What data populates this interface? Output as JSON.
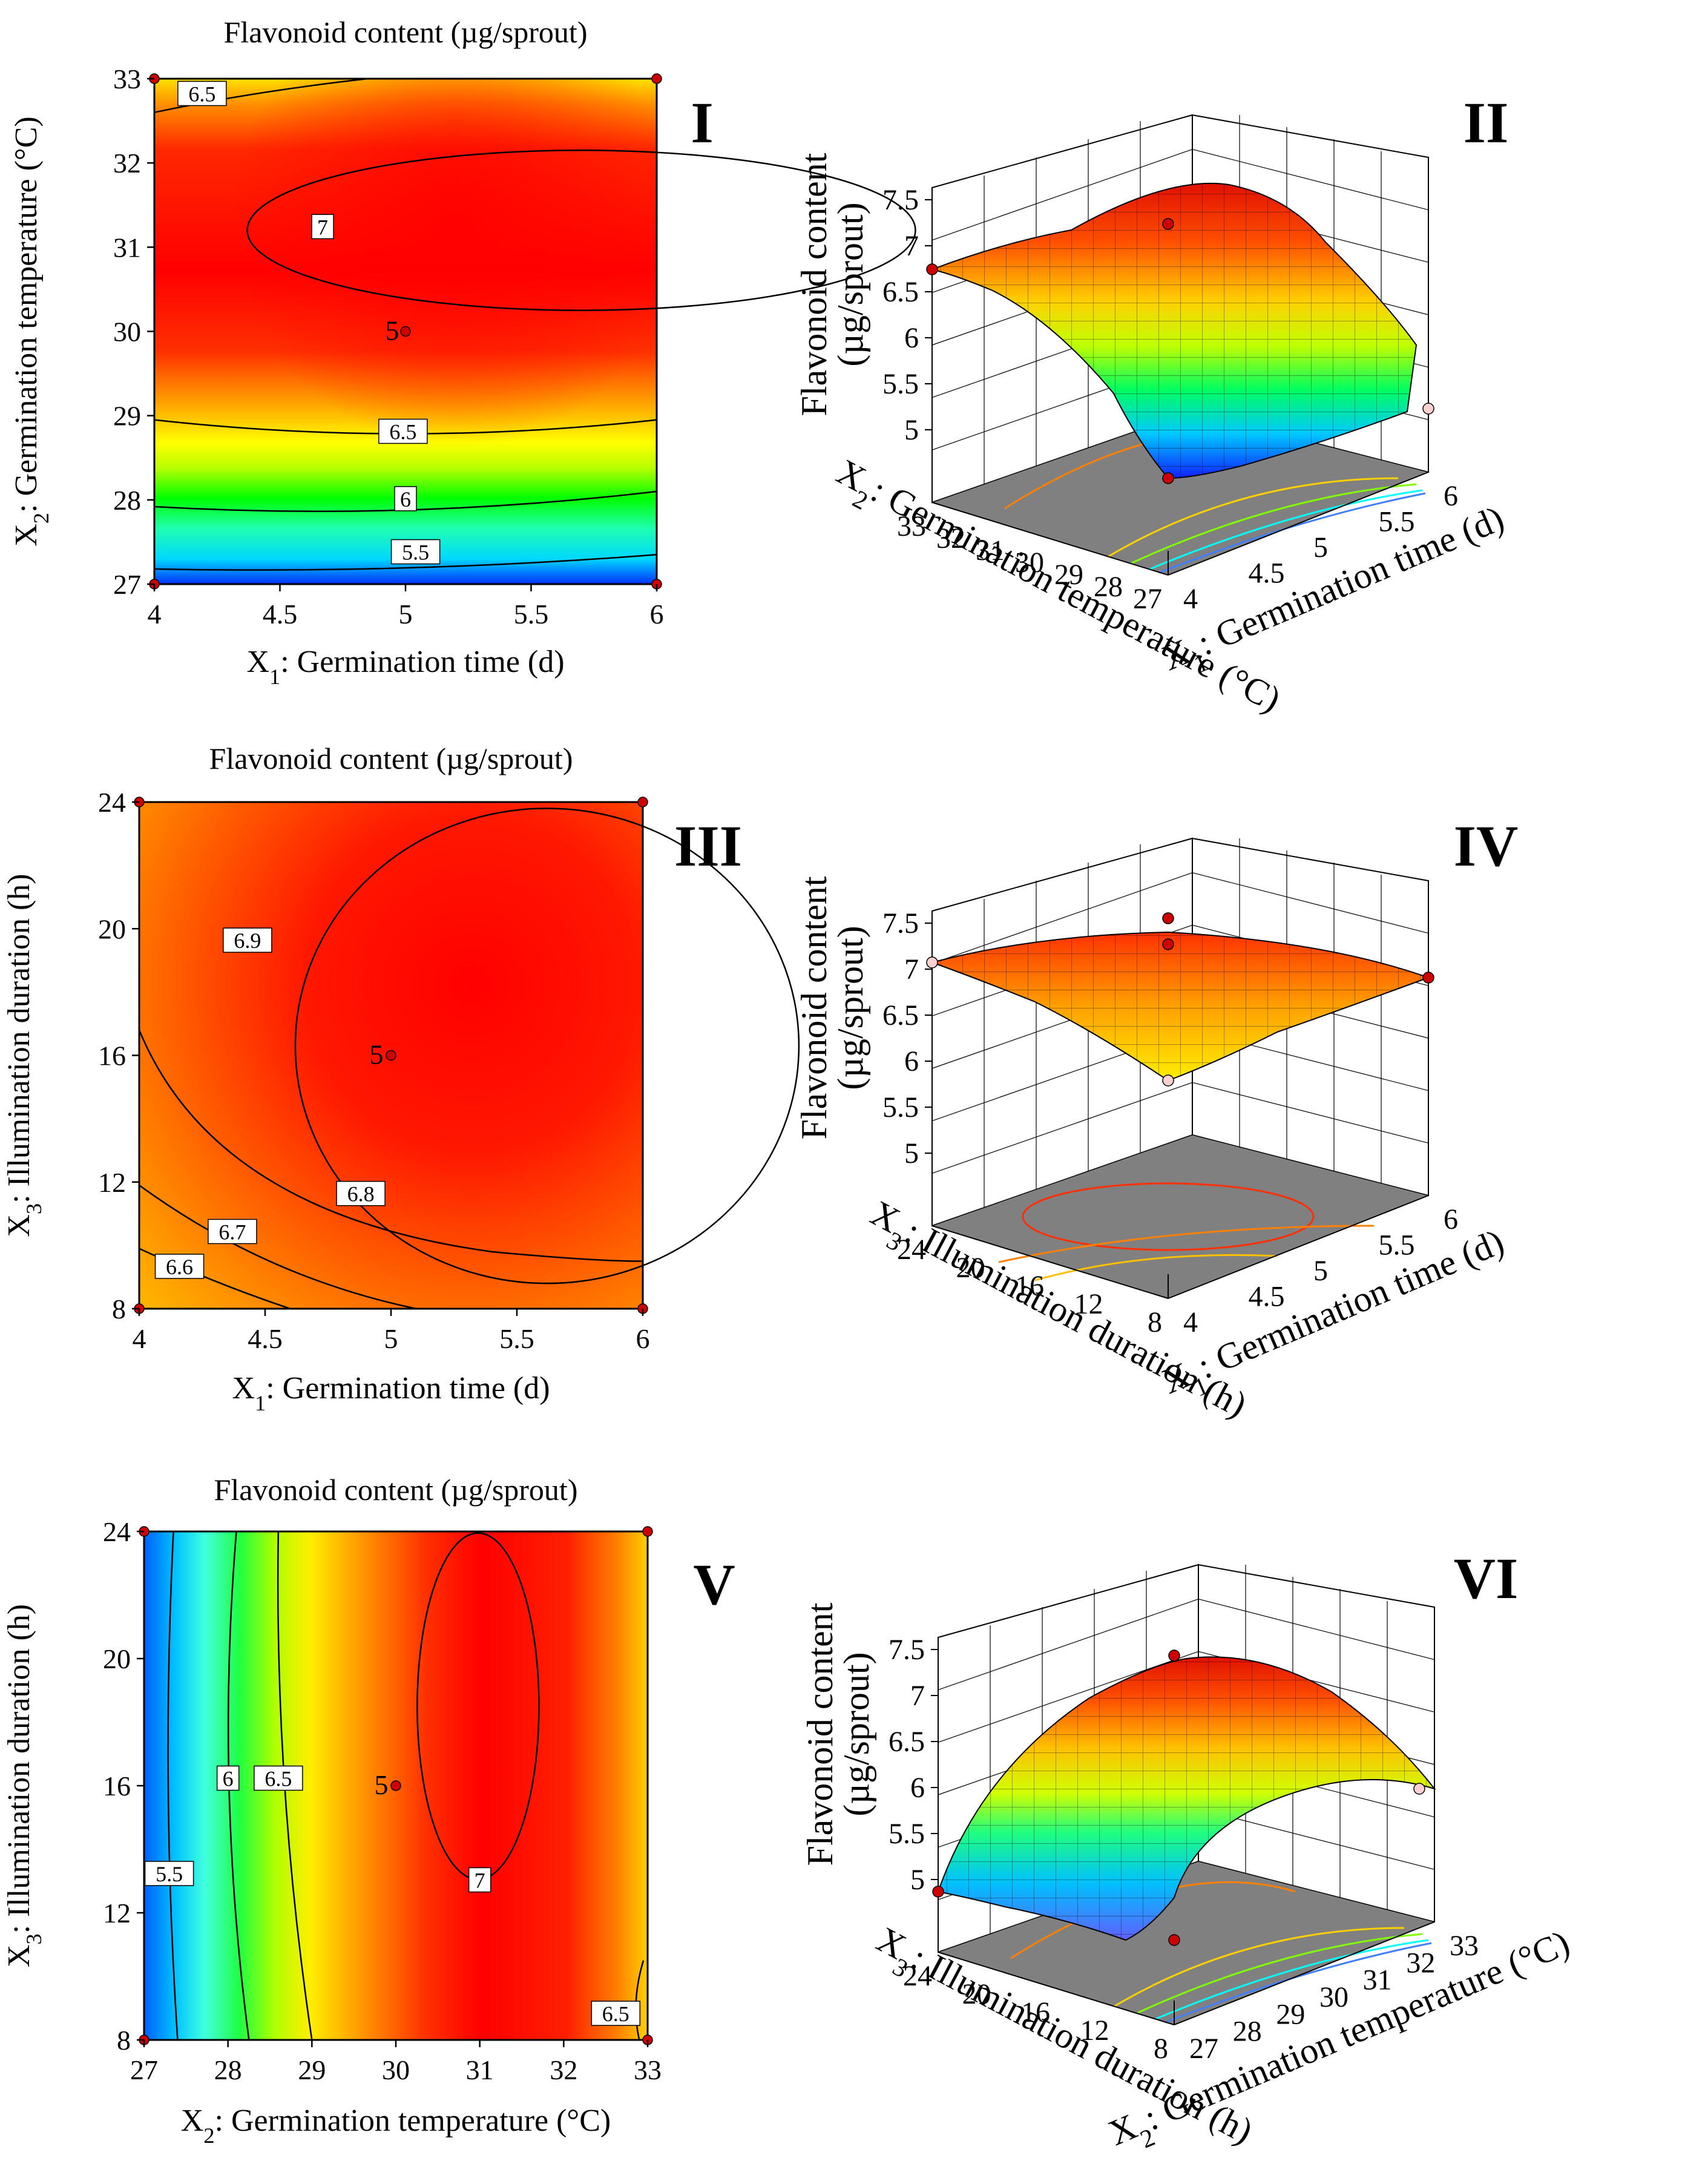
{
  "chart_data": [
    {
      "id": "I",
      "type": "contour",
      "title": "Flavonoid content (µg/sprout)",
      "xlabel": "X1: Germination time (d)",
      "ylabel": "X2: Germination temperature (°C)",
      "xlim": [
        4,
        6
      ],
      "ylim": [
        27,
        33
      ],
      "xticks": [
        "4",
        "4.5",
        "5",
        "5.5",
        "6"
      ],
      "yticks": [
        "27",
        "28",
        "29",
        "30",
        "31",
        "32",
        "33"
      ],
      "contour_levels": [
        "5.5",
        "6",
        "6.5",
        "7",
        "6.5"
      ],
      "center_point_label": "5"
    },
    {
      "id": "II",
      "type": "surface3d",
      "zlabel": "Flavonoid content (µg/sprout)",
      "xlabel": "X1: Germination time (d)",
      "ylabel": "X2: Germination temperature (°C)",
      "zticks": [
        "5",
        "5.5",
        "6",
        "6.5",
        "7",
        "7.5"
      ],
      "xticks": [
        "4",
        "4.5",
        "5",
        "5.5",
        "6"
      ],
      "yticks": [
        "27",
        "28",
        "29",
        "30",
        "31",
        "32",
        "33"
      ]
    },
    {
      "id": "III",
      "type": "contour",
      "title": "Flavonoid content (µg/sprout)",
      "xlabel": "X1: Germination time (d)",
      "ylabel": "X3: Illumination duration (h)",
      "xlim": [
        4,
        6
      ],
      "ylim": [
        8,
        24
      ],
      "xticks": [
        "4",
        "4.5",
        "5",
        "5.5",
        "6"
      ],
      "yticks": [
        "8",
        "12",
        "16",
        "20",
        "24"
      ],
      "contour_levels": [
        "6.6",
        "6.7",
        "6.8",
        "6.9"
      ],
      "center_point_label": "5"
    },
    {
      "id": "IV",
      "type": "surface3d",
      "zlabel": "Flavonoid content (µg/sprout)",
      "xlabel": "X1: Germination time (d)",
      "ylabel": "X3: Illumination duration (h)",
      "zticks": [
        "5",
        "5.5",
        "6",
        "6.5",
        "7",
        "7.5"
      ],
      "xticks": [
        "4",
        "4.5",
        "5",
        "5.5",
        "6"
      ],
      "yticks": [
        "8",
        "12",
        "16",
        "20",
        "24"
      ]
    },
    {
      "id": "V",
      "type": "contour",
      "title": "Flavonoid content (µg/sprout)",
      "xlabel": "X2: Germination temperature (°C)",
      "ylabel": "X3: Illumination duration (h)",
      "xlim": [
        27,
        33
      ],
      "ylim": [
        8,
        24
      ],
      "xticks": [
        "27",
        "28",
        "29",
        "30",
        "31",
        "32",
        "33"
      ],
      "yticks": [
        "8",
        "12",
        "16",
        "20",
        "24"
      ],
      "contour_levels": [
        "5.5",
        "6",
        "6.5",
        "7",
        "6.5"
      ],
      "center_point_label": "5"
    },
    {
      "id": "VI",
      "type": "surface3d",
      "zlabel": "Flavonoid content (µg/sprout)",
      "xlabel": "X2: Germination temperature (°C)",
      "ylabel": "X3: Illumination duration (h)",
      "zticks": [
        "5",
        "5.5",
        "6",
        "6.5",
        "7",
        "7.5"
      ],
      "xticks": [
        "27",
        "28",
        "29",
        "30",
        "31",
        "32",
        "33"
      ],
      "yticks": [
        "8",
        "12",
        "16",
        "20",
        "24"
      ]
    }
  ],
  "colors": {
    "high": "#ff0000",
    "mid_high": "#ff8000",
    "mid": "#ffff00",
    "mid_low": "#00ff00",
    "low_mid": "#00ffff",
    "low": "#0000ff",
    "floor": "#808080",
    "design_point": "#cc0000"
  }
}
